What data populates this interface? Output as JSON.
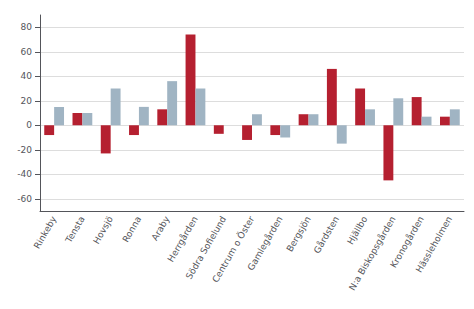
{
  "chart_data": {
    "type": "bar",
    "categories": [
      "Rinkeby",
      "Tensta",
      "Hovsjö",
      "Ronna",
      "Araby",
      "Herrgården",
      "Södra Sofielund",
      "Centrum o Öster",
      "Gamlegården",
      "Bergsjön",
      "Gårdsten",
      "Hjällbo",
      "N:a Biskopsgården",
      "Kronogården",
      "Hässleholmen"
    ],
    "series": [
      {
        "color": "#b52030",
        "values": [
          -8,
          10,
          -23,
          -8,
          13,
          74,
          -7,
          -12,
          -8,
          9,
          46,
          30,
          -45,
          23,
          7
        ]
      },
      {
        "color": "#a0b4c3",
        "values": [
          15,
          10,
          30,
          15,
          36,
          30,
          0,
          9,
          -10,
          9,
          -15,
          13,
          22,
          7,
          13
        ]
      }
    ],
    "ylim": [
      -70,
      90
    ],
    "yticks": [
      -60,
      -40,
      -20,
      0,
      20,
      40,
      60,
      80
    ],
    "grid": true
  }
}
